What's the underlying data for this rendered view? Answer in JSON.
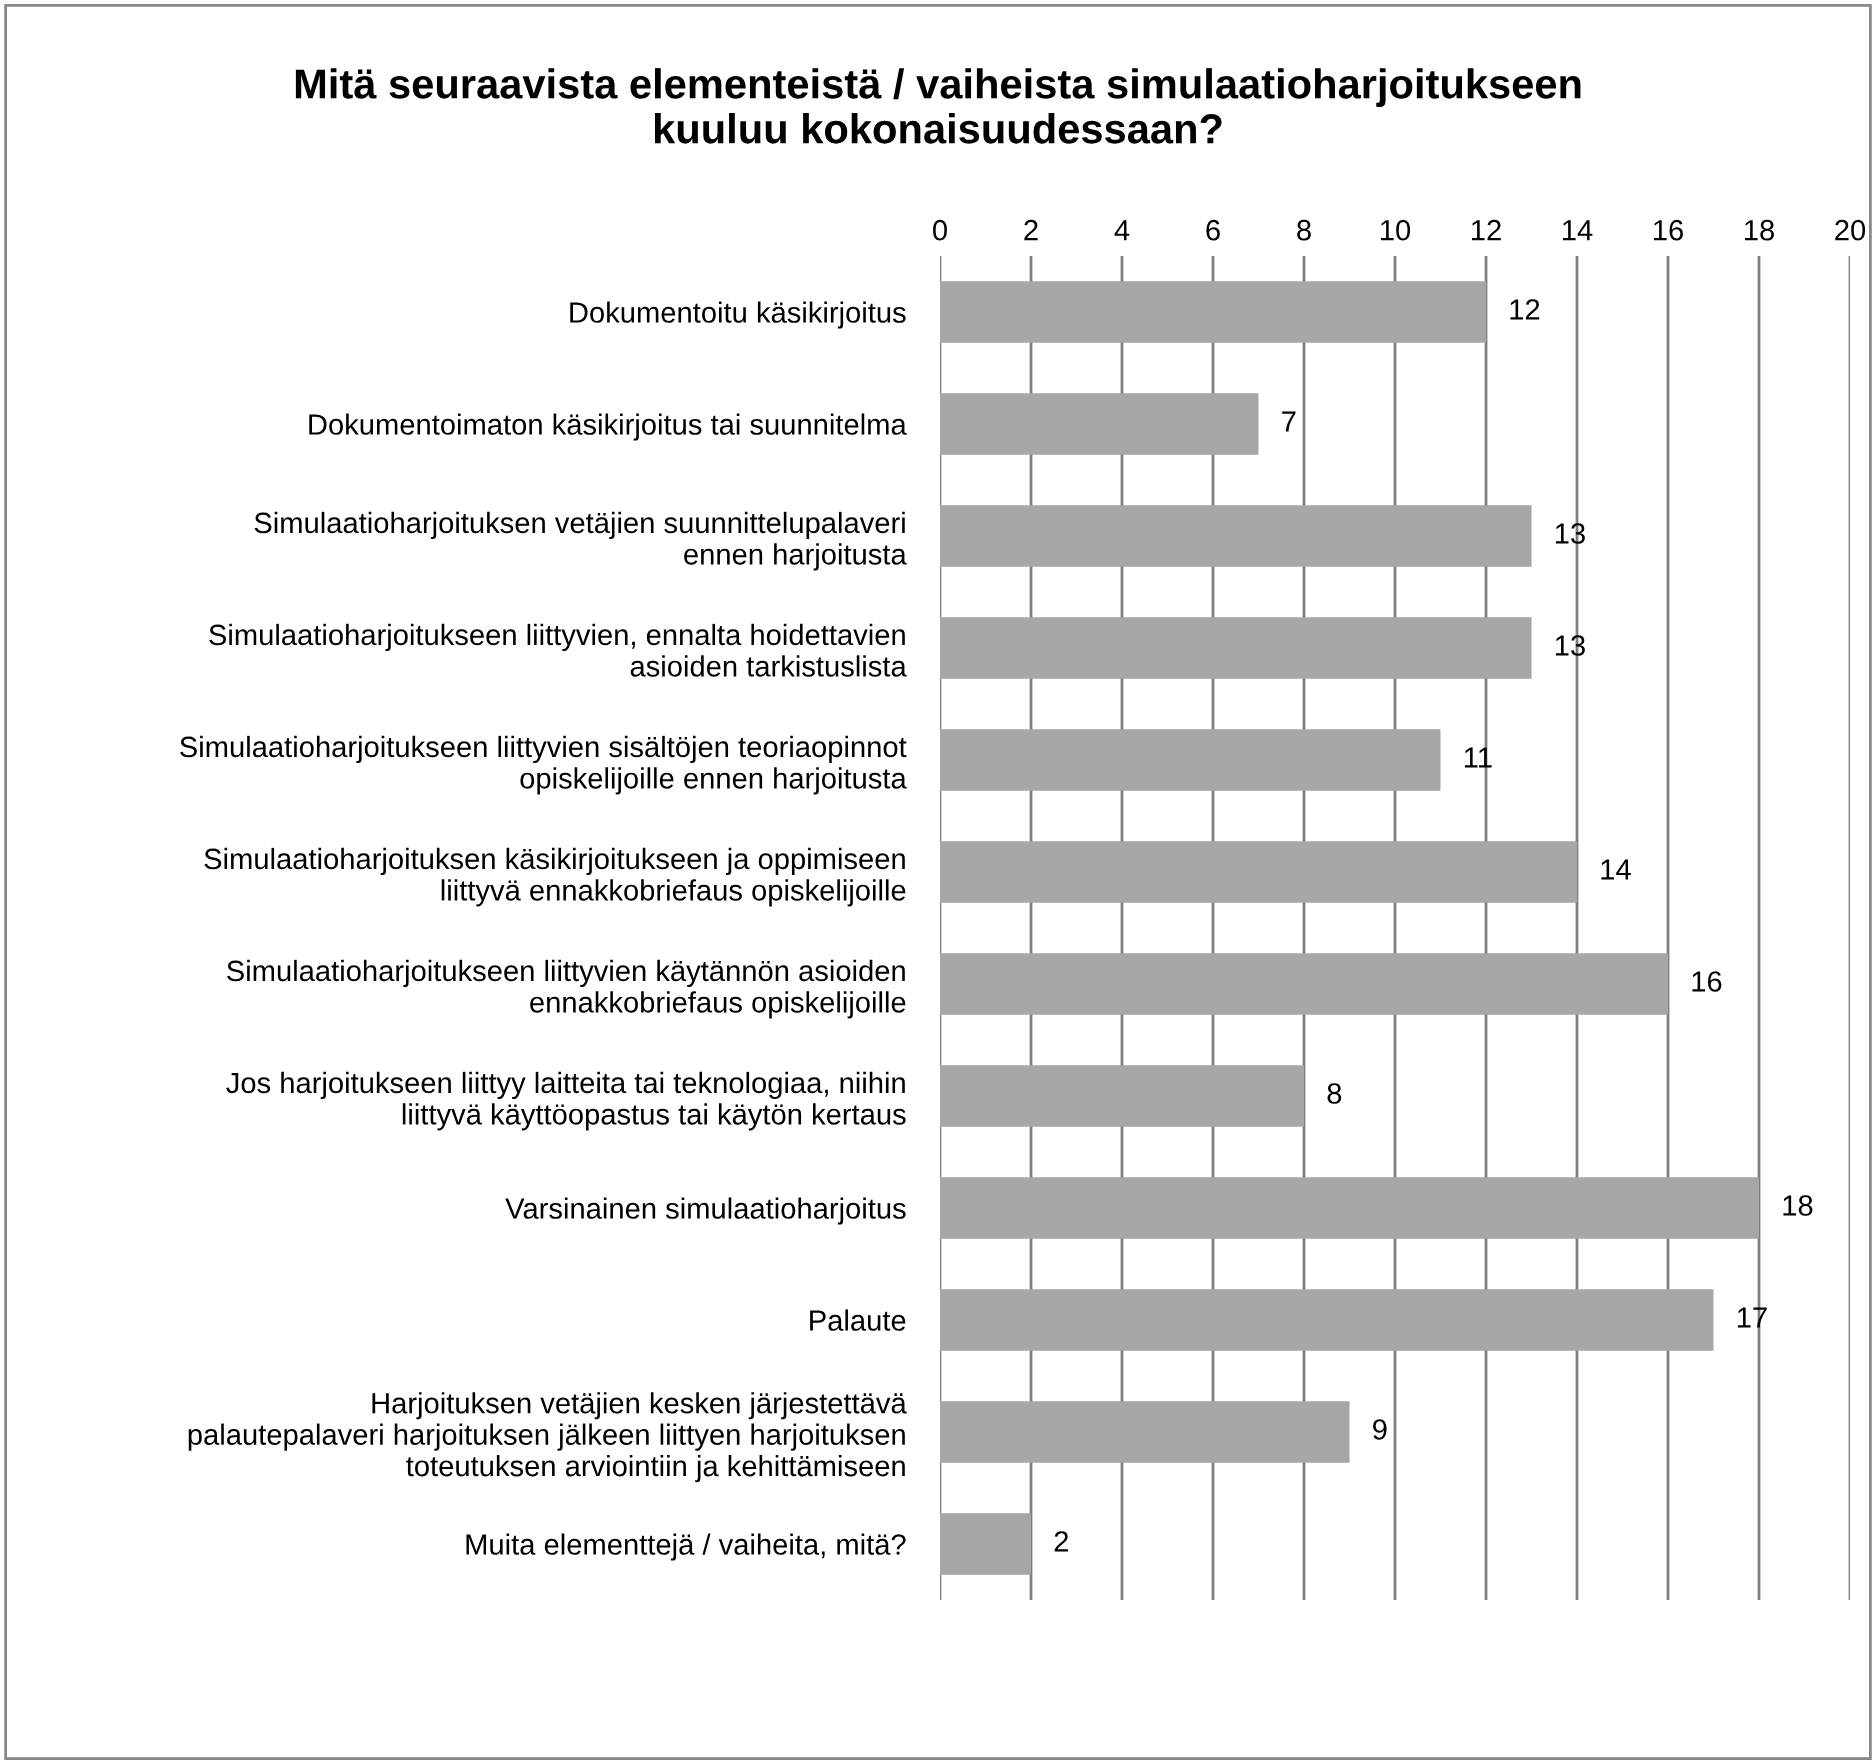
{
  "chart_data": {
    "type": "bar",
    "orientation": "horizontal",
    "title": "Mitä seuraavista elementeistä / vaiheista simulaatioharjoitukseen\nkuuluu kokonaisuudessaan?",
    "categories": [
      "Dokumentoitu käsikirjoitus",
      "Dokumentoimaton käsikirjoitus tai suunnitelma",
      "Simulaatioharjoituksen vetäjien suunnittelupalaveri\nennen harjoitusta",
      "Simulaatioharjoitukseen liittyvien, ennalta hoidettavien\nasioiden tarkistuslista",
      "Simulaatioharjoitukseen liittyvien sisältöjen teoriaopinnot\nopiskelijoille ennen harjoitusta",
      "Simulaatioharjoituksen käsikirjoitukseen ja oppimiseen\nliittyvä ennakkobriefaus opiskelijoille",
      "Simulaatioharjoitukseen liittyvien käytännön asioiden\nennakkobriefaus opiskelijoille",
      "Jos harjoitukseen liittyy laitteita tai teknologiaa, niihin\nliittyvä käyttöopastus tai käytön kertaus",
      "Varsinainen simulaatioharjoitus",
      "Palaute",
      "Harjoituksen vetäjien kesken järjestettävä\npalautepalaveri harjoituksen jälkeen liittyen harjoituksen\ntoteutuksen arviointiin ja kehittämiseen",
      "Muita elementtejä / vaiheita, mitä?"
    ],
    "values": [
      12,
      7,
      13,
      13,
      11,
      14,
      16,
      8,
      18,
      17,
      9,
      2
    ],
    "color": "#a6a6a6",
    "xlim": [
      0,
      20
    ],
    "xticks": [
      0,
      2,
      4,
      6,
      8,
      10,
      12,
      14,
      16,
      18,
      20
    ],
    "grid": "x",
    "data_labels": true
  }
}
